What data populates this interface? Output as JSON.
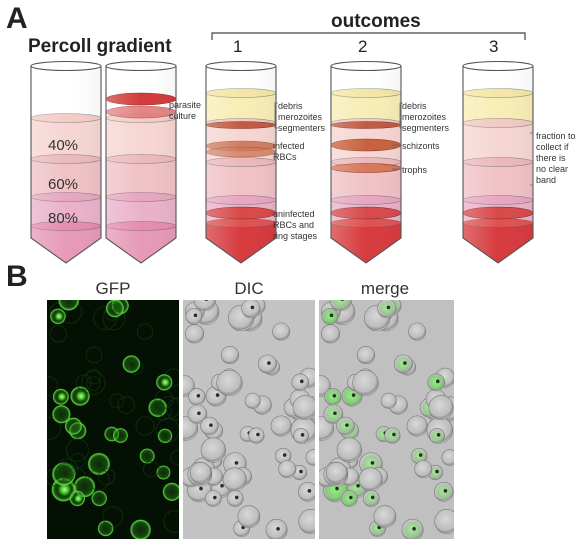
{
  "panel_a": {
    "letter": "A",
    "title": "Percoll gradient",
    "outcomes_header": "outcomes",
    "outcome_numbers": [
      "1",
      "2",
      "3"
    ],
    "gradient_percentages": [
      "40%",
      "60%",
      "80%"
    ],
    "labels": {
      "parasite_culture": "parasite\nculture",
      "debris_1": "debris\nmerozoites\nsegmenters",
      "infected_rbcs": "infected\nRBCs",
      "uninfected": "uninfected\nRBCs and\nring stages",
      "debris_2": "debris\nmerozoites\nsegmenters",
      "schizonts": "schizonts",
      "trophs": "trophs",
      "fraction_collect": "fraction to\ncollect if\nthere is\nno clear\nband"
    }
  },
  "panel_b": {
    "letter": "B",
    "image_titles": [
      "GFP",
      "DIC",
      "merge"
    ]
  },
  "colors": {
    "tube_outline": "#555555",
    "pale_pink": "#f6d6d2",
    "mid_pink": "#efc2c6",
    "light_magenta": "#eab2c9",
    "magenta": "#e69ab8",
    "cream": "#f8edb6",
    "band_red": "#d8555a",
    "deep_red": "#d73b3e",
    "schizont_band": "#c8623e",
    "gfp_green": "#4ccf34",
    "gfp_bg": "#041004",
    "dic_gray": "#c7c7c7"
  }
}
